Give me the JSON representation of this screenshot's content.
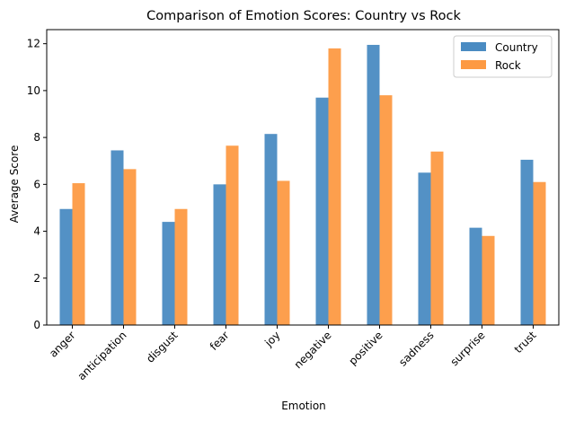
{
  "chart_data": {
    "type": "bar",
    "title": "Comparison of Emotion Scores: Country vs Rock",
    "xlabel": "Emotion",
    "ylabel": "Average Score",
    "ylim": [
      0,
      12.6
    ],
    "yticks": [
      0,
      2,
      4,
      6,
      8,
      10,
      12
    ],
    "categories": [
      "anger",
      "anticipation",
      "disgust",
      "fear",
      "joy",
      "negative",
      "positive",
      "sadness",
      "surprise",
      "trust"
    ],
    "series": [
      {
        "name": "Country",
        "color": "#4a8bc2",
        "values": [
          4.95,
          7.45,
          4.4,
          6.0,
          8.15,
          9.7,
          11.95,
          6.5,
          4.15,
          7.05
        ]
      },
      {
        "name": "Rock",
        "color": "#fd9a43",
        "values": [
          6.05,
          6.65,
          4.95,
          7.65,
          6.15,
          11.8,
          9.8,
          7.4,
          3.8,
          6.1
        ]
      }
    ],
    "legend_position": "top-right",
    "grid": false
  }
}
